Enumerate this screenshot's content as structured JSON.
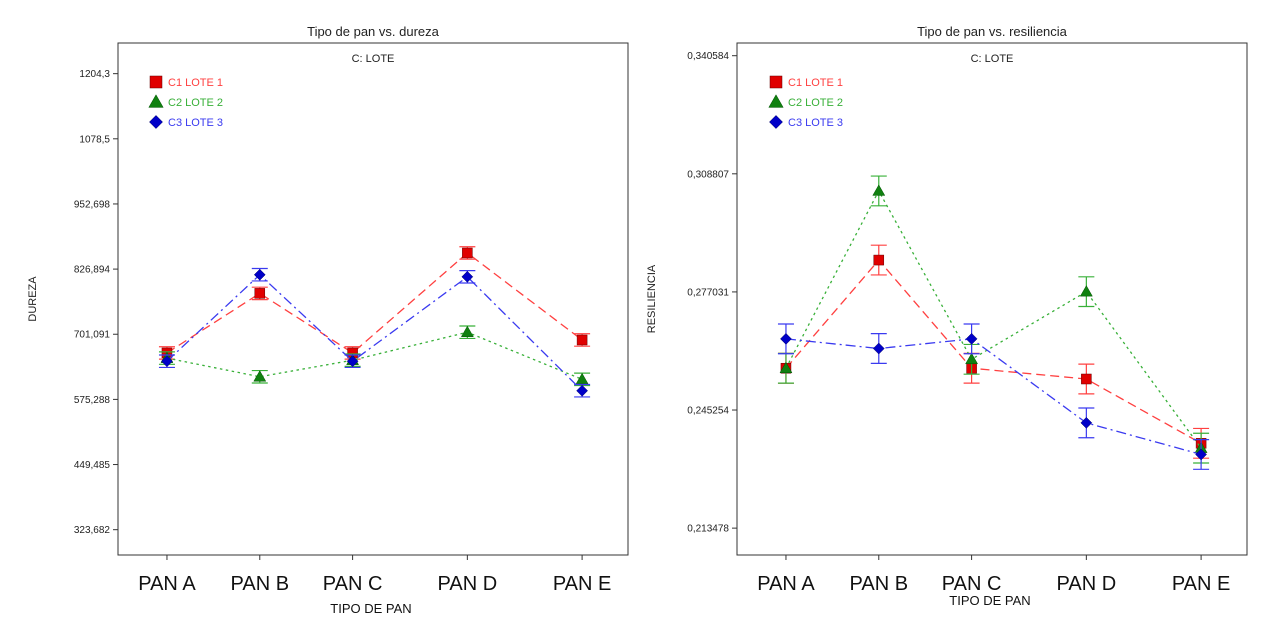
{
  "colors": {
    "lote1": "#ff4040",
    "lote2": "#38b038",
    "lote3": "#3a3af0",
    "lote1_marker": "#e00000",
    "lote2_marker": "#108010",
    "lote3_marker": "#0000c8"
  },
  "chart_data": [
    {
      "type": "line",
      "title": "Tipo de pan vs. dureza",
      "xlabel": "TIPO DE PAN",
      "ylabel": "DUREZA",
      "legend_title": "C: LOTE",
      "legend_placement": "top-left",
      "categories": [
        "PAN A",
        "PAN B",
        "PAN C",
        "PAN D",
        "PAN E"
      ],
      "yticks": [
        "1204,3",
        "1078,5",
        "952,698",
        "826,894",
        "701,091",
        "575,288",
        "449,485",
        "323,682"
      ],
      "ytick_values": [
        1204.3,
        1078.5,
        952.698,
        826.894,
        701.091,
        575.288,
        449.485,
        323.682
      ],
      "ylim": [
        274.8,
        1263.5
      ],
      "grid": false,
      "series": [
        {
          "name": "C1 LOTE 1",
          "marker": "square",
          "values": [
            665,
            780,
            665,
            858,
            690
          ],
          "err": 12
        },
        {
          "name": "C2 LOTE 2",
          "marker": "triangle",
          "values": [
            655,
            619,
            651,
            705,
            614
          ],
          "err": 12
        },
        {
          "name": "C3 LOTE 3",
          "marker": "diamond",
          "values": [
            649,
            816,
            649,
            812,
            592
          ],
          "err": 12
        }
      ]
    },
    {
      "type": "line",
      "title": "Tipo de pan vs. resiliencia",
      "xlabel": "TIPO DE PAN",
      "ylabel": "RESILIENCIA",
      "legend_title": "C: LOTE",
      "legend_placement": "top-left",
      "categories": [
        "PAN A",
        "PAN B",
        "PAN C",
        "PAN D",
        "PAN E"
      ],
      "yticks": [
        "0,340584",
        "0,308807",
        "0,277031",
        "0,245254",
        "0,213478"
      ],
      "ytick_values": [
        0.340584,
        0.308807,
        0.277031,
        0.245254,
        0.213478
      ],
      "ylim": [
        0.20625,
        0.344
      ],
      "grid": false,
      "series": [
        {
          "name": "C1 LOTE 1",
          "marker": "square",
          "values": [
            0.2565,
            0.2856,
            0.2565,
            0.2536,
            0.2363
          ],
          "err": 0.004
        },
        {
          "name": "C2 LOTE 2",
          "marker": "triangle",
          "values": [
            0.2565,
            0.3042,
            0.2589,
            0.2771,
            0.235
          ],
          "err": 0.004
        },
        {
          "name": "C3 LOTE 3",
          "marker": "diamond",
          "values": [
            0.2644,
            0.2618,
            0.2644,
            0.2418,
            0.2333
          ],
          "err": 0.004
        }
      ]
    }
  ]
}
